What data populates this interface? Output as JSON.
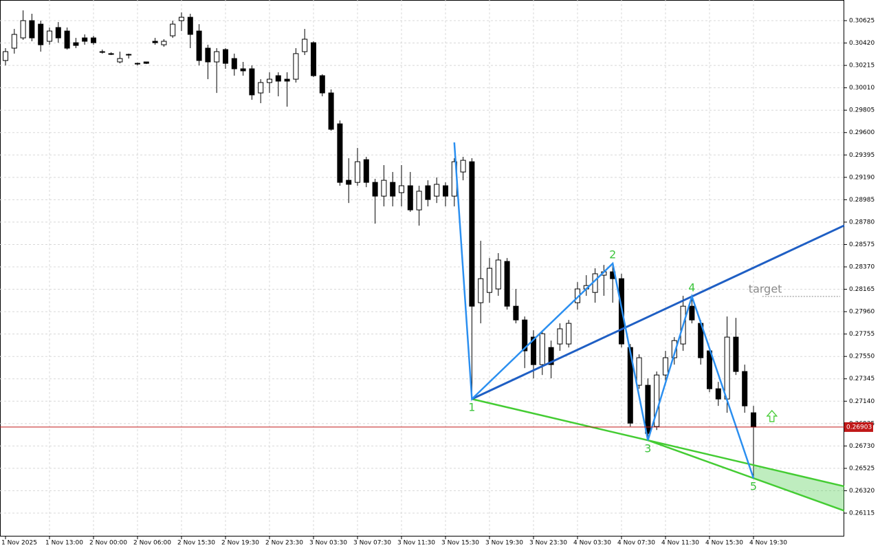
{
  "chart_data": {
    "type": "candlestick",
    "categories": [
      "1 Nov 2025",
      null,
      null,
      null,
      null,
      "1 Nov 13:00",
      null,
      null,
      null,
      null,
      "2 Nov 00:00",
      null,
      null,
      null,
      null,
      "2 Nov 06:00",
      null,
      null,
      null,
      null,
      "2 Nov 15:30",
      null,
      null,
      null,
      null,
      "2 Nov 19:30",
      null,
      null,
      null,
      null,
      "2 Nov 23:30",
      null,
      null,
      null,
      null,
      "3 Nov 03:30",
      null,
      null,
      null,
      null,
      "3 Nov 07:30",
      null,
      null,
      null,
      null,
      "3 Nov 11:30",
      null,
      null,
      null,
      null,
      "3 Nov 15:30",
      null,
      null,
      null,
      null,
      "3 Nov 19:30",
      null,
      null,
      null,
      null,
      "3 Nov 23:30",
      null,
      null,
      null,
      null,
      "4 Nov 03:30",
      null,
      null,
      null,
      null,
      "4 Nov 07:30",
      null,
      null,
      null,
      null,
      "4 Nov 11:30",
      null,
      null,
      null,
      null,
      "4 Nov 15:30",
      null,
      null,
      null,
      null,
      "4 Nov 19:30"
    ],
    "open": [
      0.3026,
      0.30373,
      0.30467,
      0.30625,
      0.30593,
      0.30436,
      0.30562,
      0.3053,
      0.30423,
      0.30467,
      0.30467,
      0.30341,
      0.30323,
      0.30247,
      0.3031,
      0.30234,
      0.30247,
      0.30436,
      0.30404,
      0.30486,
      0.30625,
      0.30656,
      0.3053,
      0.30373,
      0.30247,
      0.3036,
      0.30278,
      0.30184,
      0.30184,
      0.29963,
      0.30058,
      0.30121,
      0.30089,
      0.30089,
      0.30341,
      0.30423,
      0.30121,
      0.29963,
      0.2968,
      0.29163,
      0.29144,
      0.29352,
      0.29144,
      0.29018,
      0.29144,
      0.2905,
      0.29113,
      0.28892,
      0.29113,
      0.29018,
      0.29113,
      0.29018,
      0.29239,
      0.29333,
      0.28042,
      0.28136,
      0.28168,
      0.2842,
      0.2801,
      0.27884,
      0.27727,
      0.27475,
      0.27632,
      0.27664,
      0.27664,
      0.28042,
      0.28168,
      0.28136,
      0.28294,
      0.28325,
      0.28262,
      0.27632,
      0.27286,
      0.27286,
      0.26908,
      0.2738,
      0.27538,
      0.27664,
      0.2801,
      0.27853,
      0.27601,
      0.27254,
      0.2716,
      0.27727,
      0.27412,
      0.27034
    ],
    "high": [
      0.30373,
      0.30549,
      0.30719,
      0.30688,
      0.30625,
      0.30562,
      0.30612,
      0.30562,
      0.30467,
      0.30499,
      0.30486,
      0.3036,
      0.30335,
      0.30341,
      0.30323,
      0.30241,
      0.30247,
      0.30467,
      0.30455,
      0.30625,
      0.30701,
      0.30688,
      0.30593,
      0.30404,
      0.30373,
      0.30373,
      0.30323,
      0.30247,
      0.30215,
      0.30089,
      0.30152,
      0.30152,
      0.30152,
      0.30373,
      0.30549,
      0.30436,
      0.30134,
      0.29995,
      0.29711,
      0.29365,
      0.29459,
      0.29378,
      0.29176,
      0.29302,
      0.29239,
      0.29302,
      0.29239,
      0.29113,
      0.29163,
      0.29189,
      0.29144,
      0.29365,
      0.29378,
      0.29365,
      0.28609,
      0.28451,
      0.28496,
      0.28451,
      0.28168,
      0.27916,
      0.2779,
      0.2779,
      0.27695,
      0.27853,
      0.27884,
      0.28231,
      0.28294,
      0.28357,
      0.28388,
      0.28401,
      0.28307,
      0.27664,
      0.27569,
      0.27349,
      0.27412,
      0.27601,
      0.27727,
      0.28105,
      0.28099,
      0.27884,
      0.27632,
      0.27317,
      0.27916,
      0.27903,
      0.27475,
      0.27097
    ],
    "low": [
      0.30215,
      0.30323,
      0.30449,
      0.30436,
      0.30341,
      0.30404,
      0.30423,
      0.3036,
      0.30373,
      0.30404,
      0.30404,
      0.30323,
      0.3031,
      0.30234,
      0.30278,
      0.30215,
      0.30228,
      0.30404,
      0.30386,
      0.30467,
      0.3053,
      0.30373,
      0.30215,
      0.30089,
      0.29963,
      0.30184,
      0.30121,
      0.30121,
      0.299,
      0.29869,
      0.29963,
      0.29932,
      0.29837,
      0.30058,
      0.3031,
      0.30108,
      0.29932,
      0.29617,
      0.29113,
      0.28955,
      0.29113,
      0.291,
      0.28766,
      0.28924,
      0.28924,
      0.28924,
      0.28874,
      0.28748,
      0.28924,
      0.28955,
      0.28924,
      0.28924,
      0.29163,
      0.2716,
      0.27853,
      0.28042,
      0.28105,
      0.27979,
      0.27853,
      0.27443,
      0.27349,
      0.2738,
      0.27349,
      0.27601,
      0.27632,
      0.27979,
      0.28105,
      0.28042,
      0.28105,
      0.28042,
      0.27632,
      0.26908,
      0.27254,
      0.26782,
      0.26876,
      0.27286,
      0.27475,
      0.27601,
      0.27853,
      0.27475,
      0.27223,
      0.27097,
      0.27034,
      0.2738,
      0.27034,
      0.26435
    ],
    "close": [
      0.30341,
      0.30499,
      0.30625,
      0.30467,
      0.30404,
      0.3053,
      0.30467,
      0.30373,
      0.30398,
      0.30436,
      0.30423,
      0.30335,
      0.30316,
      0.30278,
      0.30316,
      0.30228,
      0.30234,
      0.30423,
      0.30436,
      0.30593,
      0.30656,
      0.30499,
      0.3026,
      0.30247,
      0.30341,
      0.30234,
      0.30184,
      0.30165,
      0.29945,
      0.30058,
      0.30089,
      0.30071,
      0.30071,
      0.30323,
      0.30455,
      0.30121,
      0.29963,
      0.2963,
      0.29144,
      0.29126,
      0.29333,
      0.29144,
      0.29018,
      0.29163,
      0.29018,
      0.29113,
      0.28892,
      0.29063,
      0.28987,
      0.29126,
      0.29018,
      0.29333,
      0.29346,
      0.2801,
      0.28262,
      0.28357,
      0.28433,
      0.2801,
      0.27884,
      0.27601,
      0.27475,
      0.27758,
      0.27475,
      0.27803,
      0.27853,
      0.28168,
      0.28199,
      0.28307,
      0.28325,
      0.28262,
      0.27664,
      0.26939,
      0.27538,
      0.26845,
      0.2738,
      0.27538,
      0.27695,
      0.2801,
      0.27884,
      0.27538,
      0.27254,
      0.2716,
      0.27727,
      0.27412,
      0.27097,
      0.26903
    ],
    "ylim": [
      0.25901,
      0.30814
    ],
    "yticks": [
      0.30625,
      {
        "value": 0.3042,
        "label": "0.30420"
      },
      0.30215,
      {
        "value": 0.3001,
        "label": "0.30010"
      },
      0.29805,
      {
        "value": 0.296,
        "label": "0.29600"
      },
      0.29395,
      {
        "value": 0.2919,
        "label": "0.29190"
      },
      0.28985,
      {
        "value": 0.2878,
        "label": "0.28780"
      },
      0.28575,
      {
        "value": 0.2837,
        "label": "0.28370"
      },
      0.28165,
      {
        "value": 0.2796,
        "label": "0.27960"
      },
      0.27755,
      {
        "value": 0.2755,
        "label": "0.27550"
      },
      0.27345,
      {
        "value": 0.2714,
        "label": "0.27140"
      },
      0.26935,
      {
        "value": 0.2673,
        "label": "0.26730"
      },
      0.26525,
      {
        "value": 0.2632,
        "label": "0.26320"
      },
      0.26115
    ],
    "grid": true,
    "current_price": 0.26903,
    "wave_start": {
      "x": 51,
      "value": 0.2951
    },
    "wave": {
      "labels": [
        "1",
        "2",
        "3",
        "4",
        "5"
      ],
      "x": [
        53,
        69,
        73,
        78,
        85
      ],
      "values": [
        0.2716,
        0.28401,
        0.26782,
        0.28099,
        0.26435
      ]
    },
    "target_label": "target"
  }
}
